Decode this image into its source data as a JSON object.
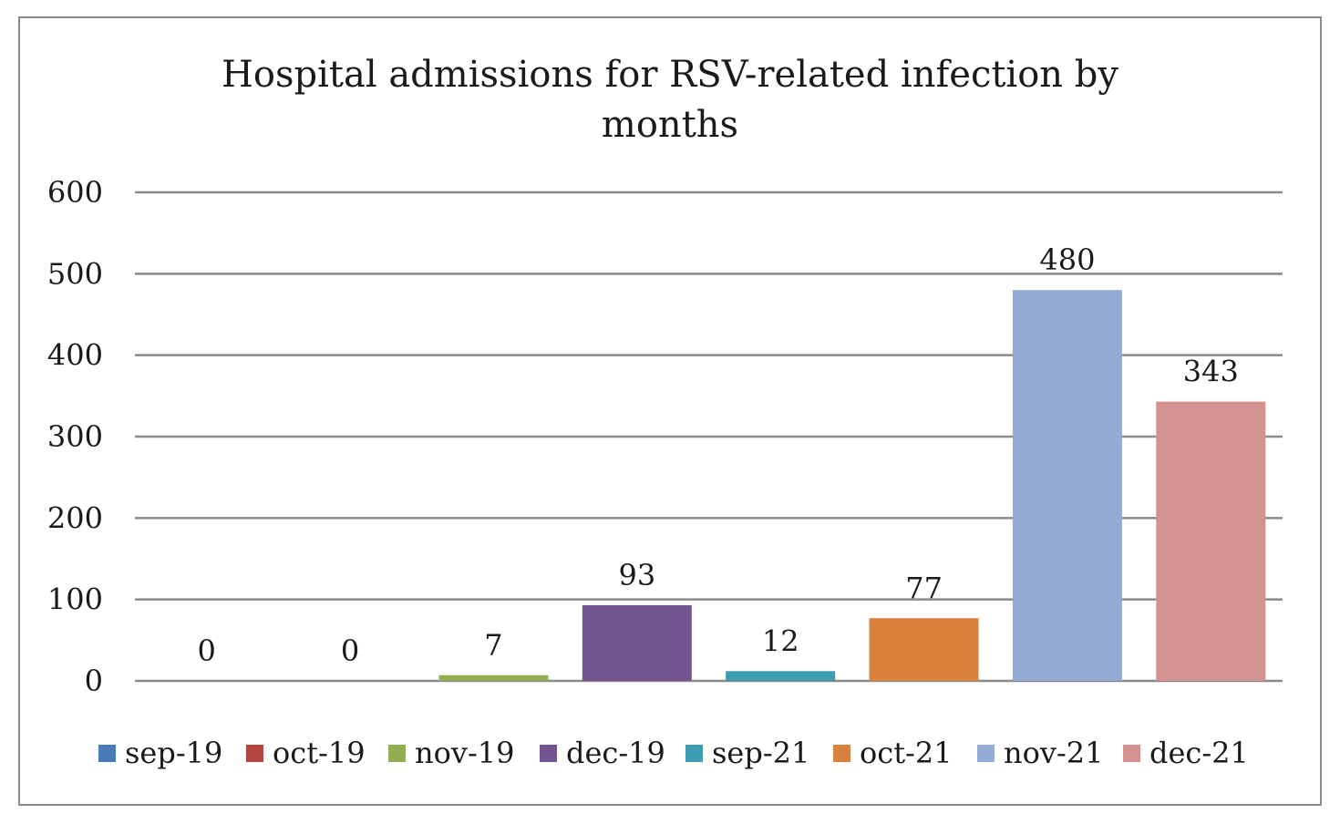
{
  "chart_data": {
    "type": "bar",
    "title_lines": [
      "Hospital admissions for RSV-related infection by",
      "months"
    ],
    "categories": [
      "sep-19",
      "oct-19",
      "nov-19",
      "dec-19",
      "sep-21",
      "oct-21",
      "nov-21",
      "dec-21"
    ],
    "values": [
      0,
      0,
      7,
      93,
      12,
      77,
      480,
      343
    ],
    "data_labels": [
      "0",
      "0",
      "7",
      "93",
      "12",
      "77",
      "480",
      "343"
    ],
    "colors": [
      "#4a7ab5",
      "#b5453f",
      "#92ae52",
      "#71548e",
      "#3f9db3",
      "#d9823d",
      "#94abd3",
      "#d39290"
    ],
    "ylim": [
      0,
      600
    ],
    "y_ticks": [
      0,
      100,
      200,
      300,
      400,
      500,
      600
    ],
    "y_tick_labels": [
      "0",
      "100",
      "200",
      "300",
      "400",
      "500",
      "600"
    ],
    "xlabel": "",
    "ylabel": "",
    "grid": true,
    "legend_position": "bottom"
  }
}
